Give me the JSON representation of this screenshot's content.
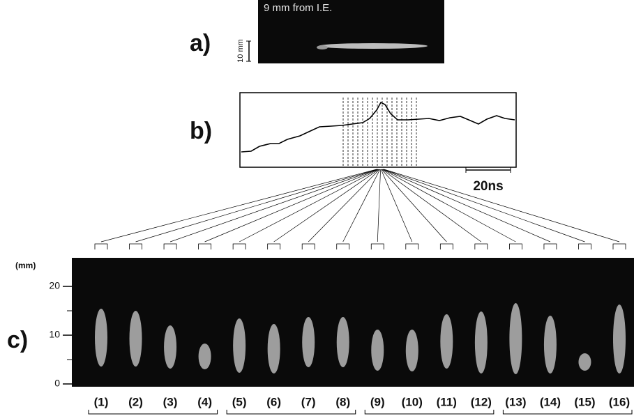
{
  "panels": {
    "a": {
      "label": "a)",
      "caption": "9 mm from I.E.",
      "scale": "10 mm"
    },
    "b": {
      "label": "b)",
      "scale": "20ns"
    },
    "c": {
      "label": "c)",
      "unit": "(mm)",
      "ticks": [
        20,
        10,
        0
      ],
      "frames": [
        "(1)",
        "(2)",
        "(3)",
        "(4)",
        "(5)",
        "(6)",
        "(7)",
        "(8)",
        "(9)",
        "(10)",
        "(11)",
        "(12)",
        "(13)",
        "(14)",
        "(15)",
        "(16)"
      ]
    }
  }
}
